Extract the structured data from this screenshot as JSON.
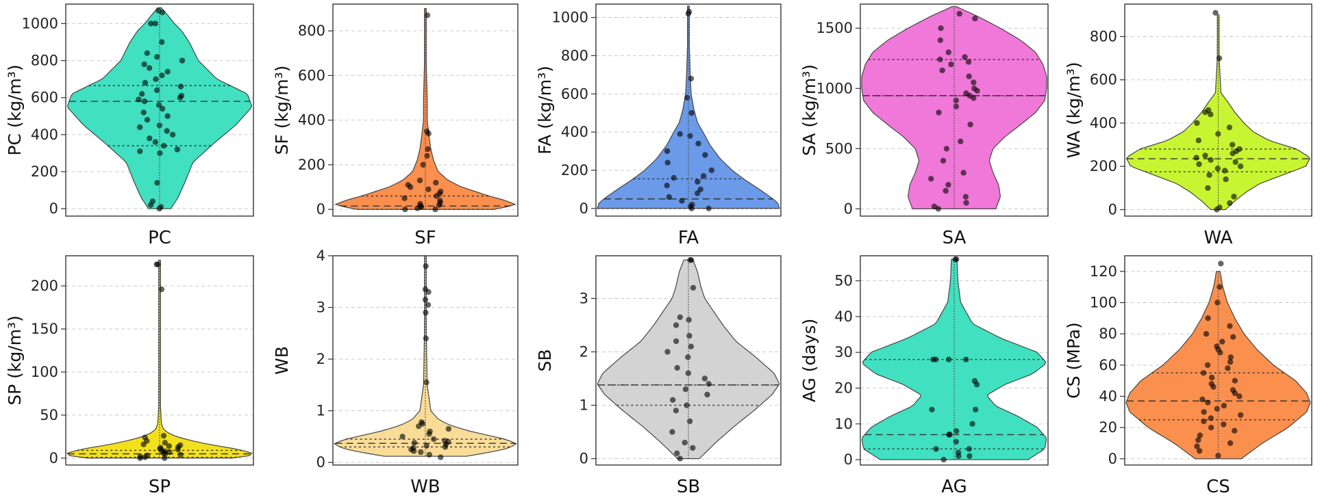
{
  "chart_data": [
    {
      "type": "violin",
      "variable": "PC",
      "xlabel": "PC",
      "ylabel": "PC (kg/m³)",
      "color": "#40e0c0",
      "ylim": [
        -40,
        1105
      ],
      "yticks": [
        0,
        200,
        400,
        600,
        800,
        1000
      ],
      "density": {
        "y": [
          0,
          60,
          150,
          250,
          350,
          450,
          550,
          620,
          700,
          800,
          900,
          960,
          1000,
          1050,
          1085
        ],
        "w": [
          0.12,
          0.2,
          0.28,
          0.36,
          0.58,
          0.82,
          1.0,
          0.95,
          0.62,
          0.42,
          0.32,
          0.24,
          0.16,
          0.08,
          0.02
        ]
      },
      "quartiles": {
        "q1": 340,
        "median": 580,
        "q3": 665
      },
      "points": [
        0,
        10,
        20,
        40,
        140,
        300,
        310,
        320,
        340,
        360,
        380,
        400,
        420,
        440,
        450,
        480,
        500,
        520,
        540,
        560,
        580,
        590,
        600,
        610,
        620,
        640,
        660,
        680,
        700,
        720,
        740,
        760,
        780,
        800,
        820,
        840,
        900,
        1000,
        1000,
        1060,
        1070
      ]
    },
    {
      "type": "violin",
      "variable": "SF",
      "xlabel": "SF",
      "ylabel": "SF (kg/m³)",
      "color": "#fb8f4e",
      "ylim": [
        -30,
        920
      ],
      "yticks": [
        0,
        200,
        400,
        600,
        800
      ],
      "density": {
        "y": [
          0,
          20,
          40,
          60,
          80,
          100,
          130,
          170,
          220,
          270,
          330,
          400,
          500,
          650,
          800,
          900
        ],
        "w": [
          0.75,
          1.0,
          0.88,
          0.7,
          0.55,
          0.4,
          0.25,
          0.14,
          0.09,
          0.06,
          0.04,
          0.02,
          0.02,
          0.01,
          0.01,
          0.01
        ]
      },
      "quartiles": {
        "q1": 0,
        "median": 15,
        "q3": 60
      },
      "points": [
        0,
        0,
        5,
        10,
        15,
        20,
        25,
        30,
        40,
        50,
        60,
        70,
        80,
        90,
        100,
        110,
        120,
        130,
        200,
        240,
        270,
        340,
        350,
        870
      ]
    },
    {
      "type": "violin",
      "variable": "FA",
      "xlabel": "FA",
      "ylabel": "FA (kg/m³)",
      "color": "#6a9ae8",
      "ylim": [
        -40,
        1070
      ],
      "yticks": [
        0,
        200,
        400,
        600,
        800,
        1000
      ],
      "density": {
        "y": [
          0,
          30,
          60,
          100,
          150,
          200,
          260,
          330,
          400,
          450,
          520,
          600,
          700,
          850,
          1000,
          1060
        ],
        "w": [
          1.0,
          0.98,
          0.9,
          0.78,
          0.62,
          0.48,
          0.35,
          0.24,
          0.16,
          0.1,
          0.06,
          0.03,
          0.02,
          0.01,
          0.01,
          0.01
        ]
      },
      "quartiles": {
        "q1": 0,
        "median": 50,
        "q3": 155
      },
      "points": [
        0,
        0,
        10,
        20,
        40,
        60,
        80,
        100,
        120,
        140,
        160,
        170,
        200,
        240,
        280,
        300,
        340,
        380,
        390,
        500,
        580,
        680,
        1020,
        1030
      ]
    },
    {
      "type": "violin",
      "variable": "SA",
      "xlabel": "SA",
      "ylabel": "SA (kg/m³)",
      "color": "#f078d8",
      "ylim": [
        -60,
        1700
      ],
      "yticks": [
        0,
        500,
        1000,
        1500
      ],
      "density": {
        "y": [
          0,
          100,
          200,
          300,
          400,
          500,
          600,
          700,
          800,
          900,
          1000,
          1100,
          1200,
          1300,
          1400,
          1500,
          1600,
          1680
        ],
        "w": [
          0.45,
          0.5,
          0.48,
          0.42,
          0.38,
          0.42,
          0.55,
          0.72,
          0.88,
          0.98,
          1.0,
          1.0,
          0.96,
          0.88,
          0.72,
          0.5,
          0.25,
          0.02
        ]
      },
      "quartiles": {
        "q1": 940,
        "median": 940,
        "q3": 1240
      },
      "points": [
        0,
        20,
        50,
        100,
        150,
        200,
        250,
        300,
        400,
        500,
        560,
        700,
        800,
        850,
        900,
        920,
        940,
        960,
        980,
        1000,
        1050,
        1100,
        1150,
        1200,
        1220,
        1240,
        1260,
        1300,
        1400,
        1500,
        1580,
        1620
      ]
    },
    {
      "type": "violin",
      "variable": "WA",
      "xlabel": "WA",
      "ylabel": "WA (kg/m³)",
      "color": "#c8f531",
      "ylim": [
        -30,
        950
      ],
      "yticks": [
        0,
        200,
        400,
        600,
        800
      ],
      "density": {
        "y": [
          0,
          40,
          80,
          120,
          160,
          200,
          240,
          280,
          320,
          360,
          400,
          450,
          500,
          540,
          700,
          900
        ],
        "w": [
          0.08,
          0.18,
          0.3,
          0.45,
          0.7,
          0.95,
          1.0,
          0.85,
          0.55,
          0.38,
          0.28,
          0.18,
          0.1,
          0.03,
          0.01,
          0.01
        ]
      },
      "quartiles": {
        "q1": 175,
        "median": 235,
        "q3": 280
      },
      "points": [
        0,
        10,
        30,
        60,
        100,
        140,
        160,
        180,
        190,
        200,
        210,
        220,
        230,
        240,
        250,
        260,
        270,
        280,
        300,
        320,
        350,
        380,
        400,
        440,
        450,
        460,
        700,
        910
      ]
    },
    {
      "type": "violin",
      "variable": "SP",
      "xlabel": "SP",
      "ylabel": "SP (kg/m³)",
      "color": "#f2e01c",
      "ylim": [
        -8,
        235
      ],
      "yticks": [
        0,
        50,
        100,
        150,
        200
      ],
      "density": {
        "y": [
          0,
          3,
          6,
          10,
          14,
          18,
          22,
          26,
          30,
          34,
          40,
          60,
          100,
          150,
          200,
          230
        ],
        "w": [
          0.78,
          0.98,
          1.0,
          0.86,
          0.64,
          0.44,
          0.28,
          0.16,
          0.08,
          0.04,
          0.02,
          0.01,
          0.01,
          0.01,
          0.01,
          0.01
        ]
      },
      "quartiles": {
        "q1": 1,
        "median": 5,
        "q3": 9
      },
      "points": [
        0,
        0,
        1,
        2,
        3,
        4,
        5,
        6,
        7,
        8,
        9,
        10,
        11,
        12,
        13,
        14,
        15,
        16,
        18,
        20,
        24,
        26,
        196,
        225,
        225
      ]
    },
    {
      "type": "violin",
      "variable": "WB",
      "xlabel": "WB",
      "ylabel": "WB",
      "color": "#f8dc98",
      "ylim": [
        -0.05,
        4.0
      ],
      "yticks": [
        0,
        1,
        2,
        3,
        4
      ],
      "density": {
        "y": [
          0.12,
          0.2,
          0.28,
          0.36,
          0.44,
          0.52,
          0.6,
          0.68,
          0.76,
          0.84,
          1.0,
          1.5,
          2.5,
          3.5,
          4.0
        ],
        "w": [
          0.45,
          0.72,
          0.92,
          1.0,
          0.9,
          0.7,
          0.5,
          0.34,
          0.22,
          0.14,
          0.06,
          0.02,
          0.01,
          0.01,
          0.01
        ]
      },
      "quartiles": {
        "q1": 0.3,
        "median": 0.37,
        "q3": 0.45
      },
      "points": [
        0.1,
        0.15,
        0.2,
        0.22,
        0.25,
        0.28,
        0.3,
        0.32,
        0.35,
        0.38,
        0.4,
        0.42,
        0.45,
        0.5,
        0.55,
        0.6,
        0.65,
        0.7,
        0.75,
        0.78,
        1.55,
        2.4,
        2.9,
        3.05,
        3.15,
        3.3,
        3.35,
        3.8
      ]
    },
    {
      "type": "violin",
      "variable": "SB",
      "xlabel": "SB",
      "ylabel": "SB",
      "color": "#d3d3d3",
      "ylim": [
        -0.12,
        3.8
      ],
      "yticks": [
        0,
        1,
        2,
        3
      ],
      "density": {
        "y": [
          0,
          0.3,
          0.6,
          0.9,
          1.2,
          1.4,
          1.6,
          1.9,
          2.2,
          2.5,
          2.8,
          3.0,
          3.2,
          3.5,
          3.72
        ],
        "w": [
          0.12,
          0.3,
          0.5,
          0.72,
          0.92,
          1.0,
          0.94,
          0.74,
          0.52,
          0.38,
          0.26,
          0.18,
          0.14,
          0.1,
          0.05
        ]
      },
      "quartiles": {
        "q1": 1.0,
        "median": 1.38,
        "q3": 1.38
      },
      "points": [
        0,
        0.1,
        0.2,
        0.3,
        0.5,
        0.7,
        0.9,
        1.0,
        1.1,
        1.2,
        1.3,
        1.4,
        1.5,
        1.6,
        1.7,
        1.9,
        2.0,
        2.1,
        2.2,
        2.3,
        2.5,
        2.6,
        2.65,
        3.2,
        3.72,
        3.72
      ]
    },
    {
      "type": "violin",
      "variable": "AG",
      "xlabel": "AG",
      "ylabel": "AG (days)",
      "color": "#40e0c0",
      "ylim": [
        -1.5,
        57
      ],
      "yticks": [
        0,
        10,
        20,
        30,
        40,
        50
      ],
      "density": {
        "y": [
          0,
          3,
          6,
          9,
          12,
          15,
          18,
          21,
          24,
          27,
          30,
          34,
          38,
          44,
          50,
          56
        ],
        "w": [
          0.8,
          0.98,
          1.0,
          0.9,
          0.7,
          0.45,
          0.35,
          0.55,
          0.85,
          1.0,
          0.9,
          0.5,
          0.2,
          0.07,
          0.04,
          0.03
        ]
      },
      "quartiles": {
        "q1": 3,
        "median": 7,
        "q3": 28
      },
      "points": [
        0,
        1,
        1,
        2,
        3,
        3,
        5,
        7,
        7,
        8,
        10,
        14,
        14,
        21,
        22,
        28,
        28,
        28,
        28,
        56,
        56
      ]
    },
    {
      "type": "violin",
      "variable": "CS",
      "xlabel": "CS",
      "ylabel": "CS (MPa)",
      "color": "#fb8f4e",
      "ylim": [
        -4,
        130
      ],
      "yticks": [
        0,
        20,
        40,
        60,
        80,
        100,
        120
      ],
      "density": {
        "y": [
          0,
          10,
          20,
          30,
          36,
          42,
          50,
          60,
          70,
          80,
          90,
          100,
          110,
          120
        ],
        "w": [
          0.25,
          0.48,
          0.76,
          0.96,
          1.0,
          0.96,
          0.84,
          0.6,
          0.42,
          0.28,
          0.18,
          0.1,
          0.05,
          0.02
        ]
      },
      "quartiles": {
        "q1": 25,
        "median": 37,
        "q3": 55
      },
      "points": [
        2,
        5,
        8,
        10,
        12,
        15,
        18,
        20,
        22,
        24,
        26,
        28,
        30,
        32,
        34,
        36,
        38,
        40,
        42,
        44,
        46,
        48,
        50,
        52,
        55,
        58,
        60,
        62,
        65,
        68,
        70,
        72,
        75,
        78,
        80,
        85,
        90,
        100,
        110,
        125
      ]
    }
  ]
}
